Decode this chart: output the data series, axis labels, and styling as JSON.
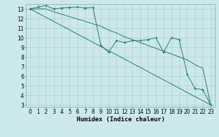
{
  "xlabel": "Humidex (Indice chaleur)",
  "bg_color": "#cde8ea",
  "grid_color": "#aacfd2",
  "line_color": "#1a7a6e",
  "xlim": [
    -0.5,
    23.5
  ],
  "ylim": [
    2.8,
    13.5
  ],
  "yticks": [
    3,
    4,
    5,
    6,
    7,
    8,
    9,
    10,
    11,
    12,
    13
  ],
  "xticks": [
    0,
    1,
    2,
    3,
    4,
    5,
    6,
    7,
    8,
    9,
    10,
    11,
    12,
    13,
    14,
    15,
    16,
    17,
    18,
    19,
    20,
    21,
    22,
    23
  ],
  "series1_x": [
    0,
    1,
    2,
    3,
    4,
    5,
    6,
    7,
    8,
    9,
    10,
    11,
    12,
    13,
    14,
    15,
    16,
    17,
    18,
    19,
    20,
    21,
    22,
    23
  ],
  "series1_y": [
    13.0,
    13.2,
    13.35,
    13.0,
    13.1,
    13.15,
    13.2,
    13.1,
    13.15,
    9.2,
    8.5,
    9.7,
    9.5,
    9.7,
    9.7,
    9.8,
    10.0,
    8.5,
    10.0,
    9.8,
    6.2,
    4.7,
    4.6,
    3.0
  ],
  "series2_x": [
    0,
    1,
    2,
    3,
    4,
    5,
    6,
    7,
    8,
    9,
    10,
    11,
    12,
    13,
    14,
    15,
    16,
    17,
    18,
    19,
    20,
    21,
    22,
    23
  ],
  "series2_y": [
    13.0,
    13.0,
    13.0,
    12.7,
    12.45,
    12.2,
    11.95,
    11.7,
    11.45,
    11.2,
    10.8,
    10.5,
    10.1,
    9.8,
    9.5,
    9.2,
    8.9,
    8.6,
    8.3,
    8.0,
    7.7,
    7.2,
    6.8,
    3.0
  ],
  "series3_x": [
    0,
    23
  ],
  "series3_y": [
    13.0,
    3.0
  ],
  "tick_fontsize": 5.5,
  "xlabel_fontsize": 6.5
}
